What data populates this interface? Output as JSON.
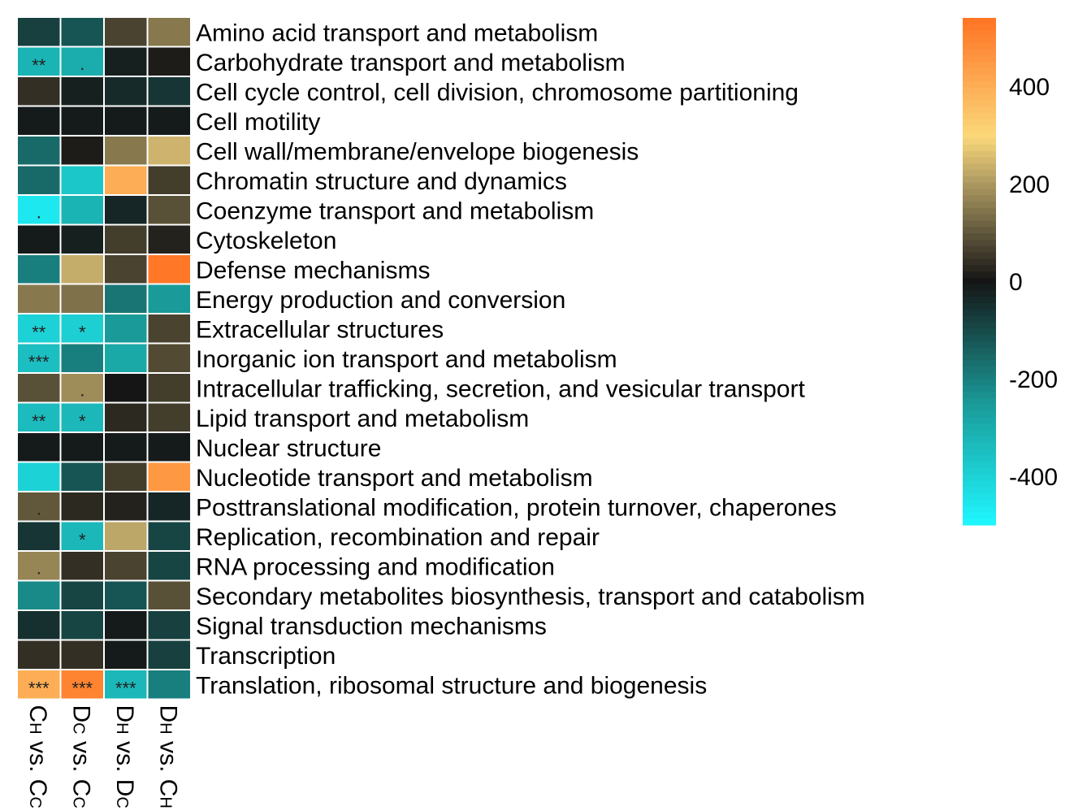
{
  "chart_data": {
    "type": "heatmap",
    "title": "",
    "rows": [
      "Amino acid transport and metabolism",
      "Carbohydrate transport and metabolism",
      "Cell cycle control, cell division, chromosome partitioning",
      "Cell motility",
      "Cell wall/membrane/envelope biogenesis",
      "Chromatin structure and dynamics",
      "Coenzyme transport and metabolism",
      "Cytoskeleton",
      "Defense mechanisms",
      "Energy production and conversion",
      "Extracellular structures",
      "Inorganic ion transport and metabolism",
      "Intracellular trafficking, secretion, and vesicular transport",
      "Lipid transport and metabolism",
      "Nuclear structure",
      "Nucleotide transport and metabolism",
      "Posttranslational modification, protein turnover, chaperones",
      "Replication, recombination and repair",
      "RNA processing and modification",
      "Secondary metabolites biosynthesis, transport and catabolism",
      "Signal transduction mechanisms",
      "Transcription",
      "Translation, ribosomal structure and biogenesis"
    ],
    "columns": [
      {
        "main1": "C",
        "sub1": "H",
        "vs": " vs. ",
        "main2": "C",
        "sub2": "C"
      },
      {
        "main1": "D",
        "sub1": "C",
        "vs": " vs. ",
        "main2": "C",
        "sub2": "C"
      },
      {
        "main1": "D",
        "sub1": "H",
        "vs": " vs. ",
        "main2": "D",
        "sub2": "C"
      },
      {
        "main1": "D",
        "sub1": "H",
        "vs": " vs. ",
        "main2": "C",
        "sub2": "H"
      }
    ],
    "values": [
      [
        -80,
        -120,
        70,
        150
      ],
      [
        -320,
        -300,
        -20,
        10
      ],
      [
        40,
        -20,
        -40,
        -60
      ],
      [
        -10,
        -10,
        -10,
        -10
      ],
      [
        -160,
        10,
        150,
        240
      ],
      [
        -160,
        -370,
        400,
        60
      ],
      [
        -460,
        -320,
        -30,
        90
      ],
      [
        -10,
        -20,
        60,
        20
      ],
      [
        -200,
        230,
        70,
        530
      ],
      [
        150,
        140,
        -180,
        -250
      ],
      [
        -400,
        -390,
        -250,
        70
      ],
      [
        -350,
        -200,
        -290,
        80
      ],
      [
        90,
        180,
        0,
        60
      ],
      [
        -340,
        -330,
        30,
        60
      ],
      [
        -10,
        -10,
        -10,
        -10
      ],
      [
        -400,
        -120,
        60,
        450
      ],
      [
        100,
        30,
        20,
        -30
      ],
      [
        -60,
        -330,
        220,
        -90
      ],
      [
        170,
        40,
        70,
        -90
      ],
      [
        -220,
        -90,
        -120,
        90
      ],
      [
        -50,
        -90,
        -10,
        -80
      ],
      [
        40,
        40,
        -10,
        -80
      ],
      [
        400,
        500,
        -330,
        -200
      ]
    ],
    "annotations": [
      [
        "",
        "",
        "",
        ""
      ],
      [
        "**",
        ".",
        "",
        ""
      ],
      [
        "",
        "",
        "",
        ""
      ],
      [
        "",
        "",
        "",
        ""
      ],
      [
        "",
        "",
        "",
        ""
      ],
      [
        "",
        "",
        "",
        ""
      ],
      [
        ".",
        "",
        "",
        ""
      ],
      [
        "",
        "",
        "",
        ""
      ],
      [
        "",
        "",
        "",
        ""
      ],
      [
        "",
        "",
        "",
        ""
      ],
      [
        "**",
        "*",
        "",
        ""
      ],
      [
        "***",
        "",
        "",
        ""
      ],
      [
        "",
        ".",
        "",
        ""
      ],
      [
        "**",
        "*",
        "",
        ""
      ],
      [
        "",
        "",
        "",
        ""
      ],
      [
        "",
        "",
        "",
        ""
      ],
      [
        ".",
        "",
        "",
        ""
      ],
      [
        "",
        "*",
        "",
        ""
      ],
      [
        ".",
        "",
        "",
        ""
      ],
      [
        "",
        "",
        "",
        ""
      ],
      [
        "",
        "",
        "",
        ""
      ],
      [
        "",
        "",
        "",
        ""
      ],
      [
        "***",
        "***",
        "***",
        ""
      ]
    ],
    "colorbar": {
      "min": -500,
      "max": 540,
      "ticks": [
        400,
        200,
        0,
        -200,
        -400
      ],
      "colors": {
        "neg_end": "#1ff7ff",
        "neg_mid": "#1a9a98",
        "zero": "#151515",
        "pos_mid": "#b9a467",
        "pos_light": "#fbd87a",
        "pos_end": "#ff7323"
      }
    }
  }
}
